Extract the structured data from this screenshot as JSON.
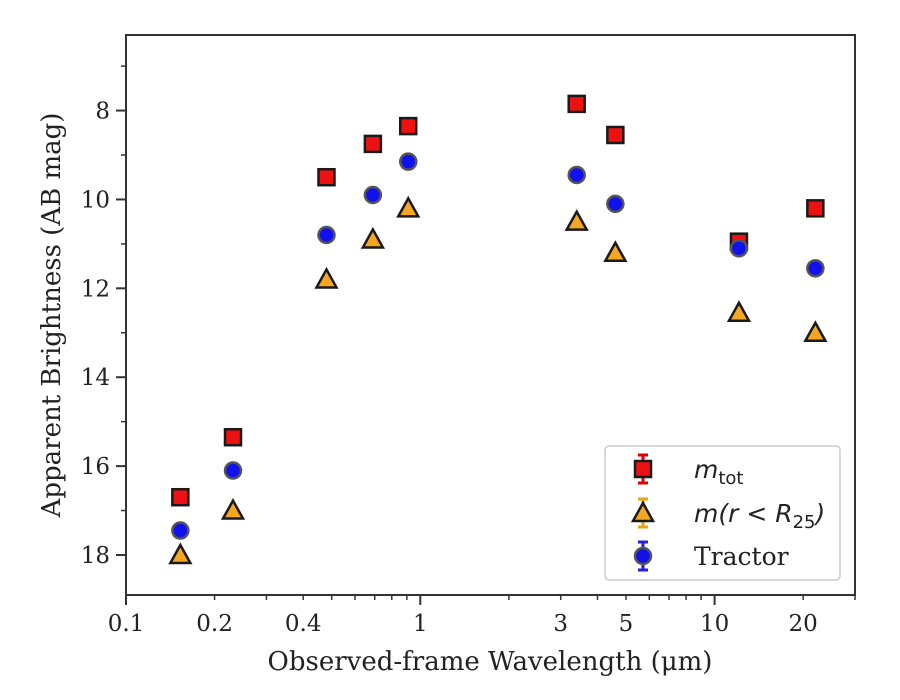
{
  "chart_data": {
    "type": "scatter",
    "title": "",
    "xlabel": "Observed-frame Wavelength (μm)",
    "ylabel": "Apparent Brightness (AB mag)",
    "xscale": "log",
    "xlim": [
      0.1,
      30
    ],
    "ylim": [
      18.9,
      6.3
    ],
    "y_inverted": true,
    "x_ticks": [
      {
        "value": 0.1,
        "label": "0.1"
      },
      {
        "value": 0.2,
        "label": "0.2"
      },
      {
        "value": 0.4,
        "label": "0.4"
      },
      {
        "value": 1,
        "label": "1"
      },
      {
        "value": 3,
        "label": "3"
      },
      {
        "value": 5,
        "label": "5"
      },
      {
        "value": 10,
        "label": "10"
      },
      {
        "value": 20,
        "label": "20"
      }
    ],
    "y_ticks": [
      {
        "value": 8,
        "label": "8"
      },
      {
        "value": 10,
        "label": "10"
      },
      {
        "value": 12,
        "label": "12"
      },
      {
        "value": 14,
        "label": "14"
      },
      {
        "value": 16,
        "label": "16"
      },
      {
        "value": 18,
        "label": "18"
      }
    ],
    "grid": false,
    "legend_position": "lower-right",
    "series": [
      {
        "name": "m_tot",
        "legend_main": "m",
        "legend_sub": "tot",
        "marker": "square",
        "color": "#ee1111",
        "errorbar_color": "#dd0000",
        "x": [
          0.153,
          0.231,
          0.48,
          0.69,
          0.91,
          3.4,
          4.6,
          12.1,
          22.0
        ],
        "y": [
          16.7,
          15.35,
          9.5,
          8.75,
          8.35,
          7.85,
          8.55,
          10.95,
          10.2
        ]
      },
      {
        "name": "m(r < R25)",
        "legend_main": "m(r < R",
        "legend_sub": "25",
        "legend_tail": ")",
        "marker": "triangle",
        "color": "#f5a623",
        "errorbar_color": "#e8a317",
        "x": [
          0.153,
          0.231,
          0.48,
          0.69,
          0.91,
          3.4,
          4.6,
          12.1,
          22.0
        ],
        "y": [
          18.0,
          17.0,
          11.8,
          10.9,
          10.2,
          10.5,
          11.2,
          12.55,
          13.0
        ]
      },
      {
        "name": "Tractor",
        "legend_main": "Tractor",
        "marker": "circle",
        "color": "#1111ee",
        "errorbar_color": "#2222dd",
        "x": [
          0.153,
          0.231,
          0.48,
          0.69,
          0.91,
          3.4,
          4.6,
          12.1,
          22.0
        ],
        "y": [
          17.45,
          16.1,
          10.8,
          9.9,
          9.15,
          9.45,
          10.1,
          11.1,
          11.55
        ]
      }
    ]
  }
}
